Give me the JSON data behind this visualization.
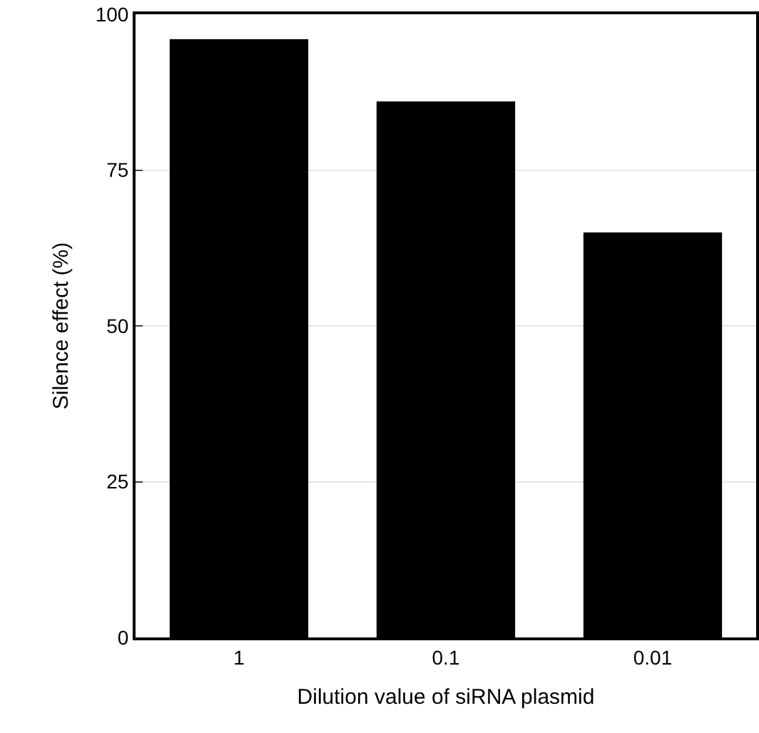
{
  "chart_data": {
    "type": "bar",
    "xlabel": "Dilution value of siRNA plasmid",
    "ylabel": "Silence effect (%)",
    "categories": [
      "1",
      "0.1",
      "0.01"
    ],
    "values": [
      96,
      86,
      65
    ],
    "color": "#000000",
    "ylim": [
      0,
      100
    ],
    "yticks": [
      0,
      25,
      50,
      75,
      100
    ],
    "grid": "y"
  }
}
